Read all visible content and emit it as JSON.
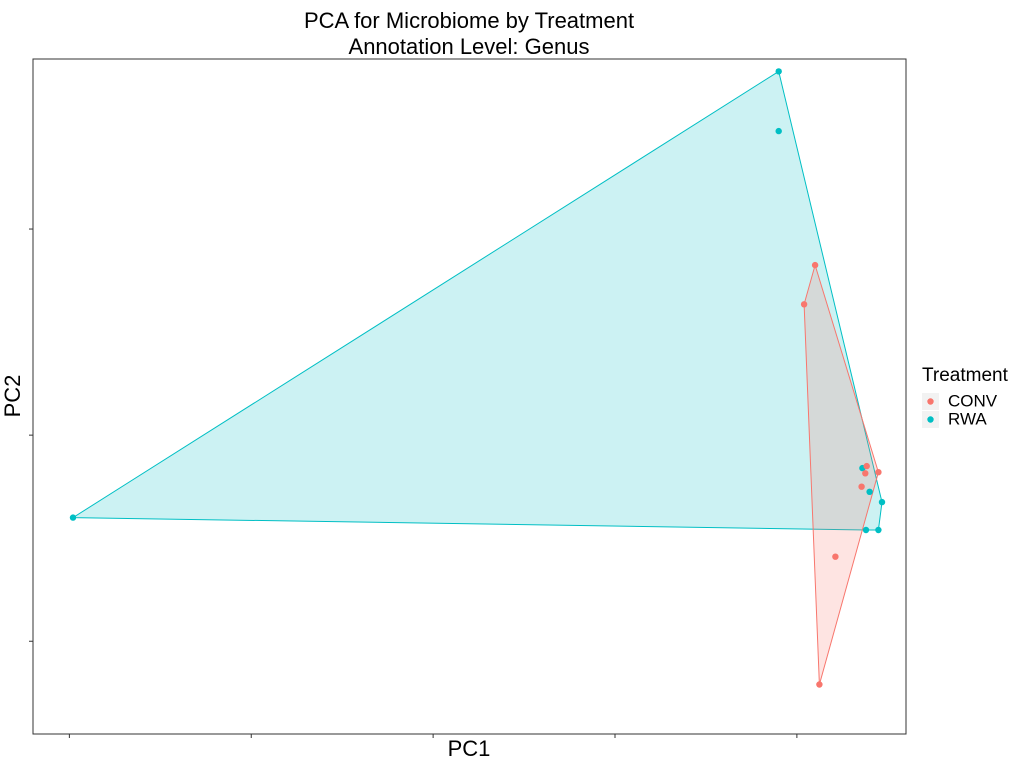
{
  "chart_data": {
    "type": "scatter",
    "title": "PCA for Microbiome by Treatment",
    "subtitle": "Annotation Level: Genus",
    "xlabel": "PC1",
    "ylabel": "PC2",
    "xlim": [
      -10.5,
      1.5
    ],
    "ylim": [
      -2.9,
      3.65
    ],
    "x_ticks": [
      -10,
      -7.5,
      -5,
      -2.5,
      0
    ],
    "y_ticks": [
      -2,
      0,
      2
    ],
    "tick_labels_shown": false,
    "grid": false,
    "hulls": true,
    "legend": {
      "title": "Treatment",
      "position": "right"
    },
    "series": [
      {
        "name": "CONV",
        "color": "#F8766D",
        "fill": "#F8766D",
        "points": [
          {
            "x": 0.25,
            "y": 1.65
          },
          {
            "x": 0.1,
            "y": 1.27
          },
          {
            "x": 0.96,
            "y": -0.3
          },
          {
            "x": 0.94,
            "y": -0.37
          },
          {
            "x": 1.12,
            "y": -0.36
          },
          {
            "x": 0.89,
            "y": -0.5
          },
          {
            "x": 0.53,
            "y": -1.18
          },
          {
            "x": 0.31,
            "y": -2.42
          }
        ]
      },
      {
        "name": "RWA",
        "color": "#00BFC4",
        "fill": "#00BFC4",
        "points": [
          {
            "x": -0.25,
            "y": 3.53
          },
          {
            "x": -0.25,
            "y": 2.95
          },
          {
            "x": -9.95,
            "y": -0.8
          },
          {
            "x": 0.9,
            "y": -0.32
          },
          {
            "x": 1.0,
            "y": -0.55
          },
          {
            "x": 1.17,
            "y": -0.65
          },
          {
            "x": 0.95,
            "y": -0.92
          },
          {
            "x": 1.12,
            "y": -0.92
          }
        ]
      }
    ]
  }
}
